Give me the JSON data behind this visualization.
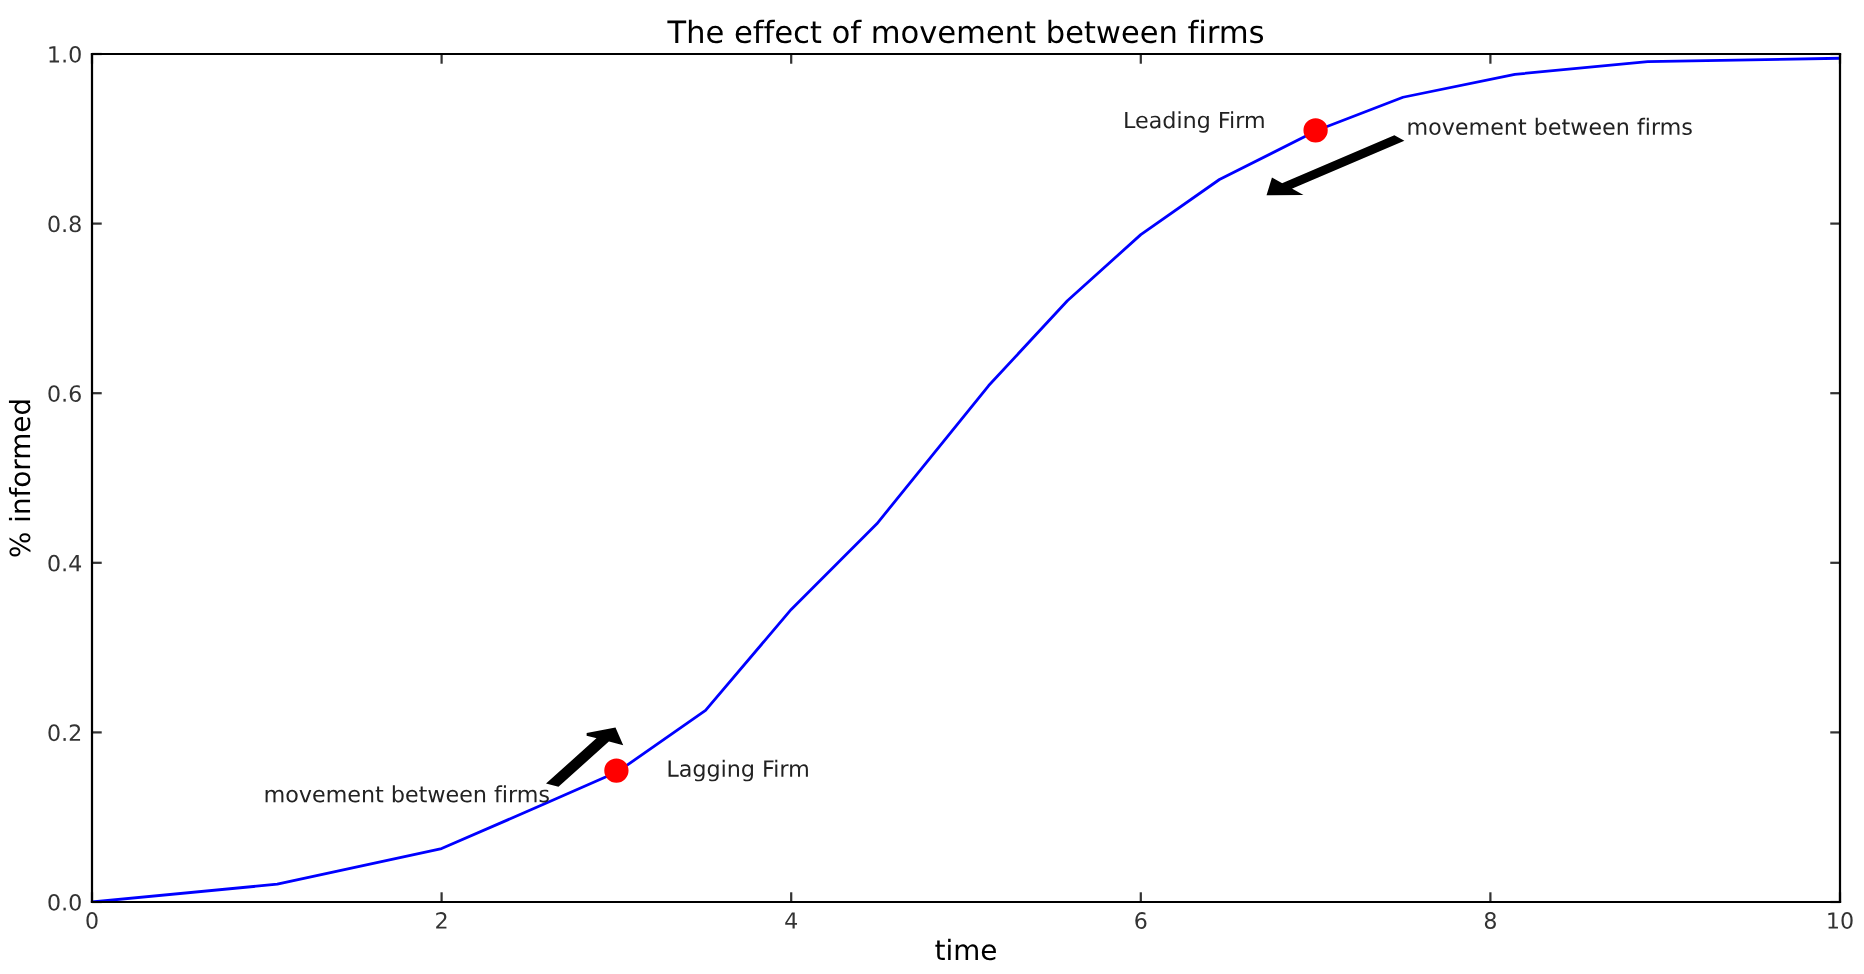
{
  "chart_data": {
    "type": "line",
    "title": "The effect of movement between firms",
    "xlabel": "time",
    "ylabel": "% informed",
    "xlim": [
      0,
      10
    ],
    "ylim": [
      0,
      1
    ],
    "xticks": [
      0,
      2,
      4,
      6,
      8,
      10
    ],
    "yticks": [
      {
        "value": 0,
        "label": "0.0"
      },
      {
        "value": 0.2,
        "label": "0.2"
      },
      {
        "value": 0.4,
        "label": "0.4"
      },
      {
        "value": 0.6,
        "label": "0.6"
      },
      {
        "value": 0.8,
        "label": "0.8"
      },
      {
        "value": 1,
        "label": "1.0"
      }
    ],
    "series": [
      {
        "color": "#0000ff",
        "x": [
          0,
          1.06,
          2.0,
          2.57,
          3.01,
          3.51,
          4.0,
          4.49,
          5.13,
          5.58,
          6.0,
          6.45,
          7.01,
          7.5,
          8.14,
          8.9,
          10
        ],
        "values": [
          0,
          0.021,
          0.063,
          0.114,
          0.154,
          0.226,
          0.345,
          0.446,
          0.609,
          0.709,
          0.787,
          0.852,
          0.91,
          0.949,
          0.976,
          0.991,
          0.995
        ]
      },
      {
        "type": "scatter",
        "color": "#ff0000",
        "x": [
          3,
          7
        ],
        "values": [
          0.155,
          0.91
        ]
      }
    ],
    "annotations": [
      {
        "text": "Lagging Firm",
        "x": 3,
        "y": 0.155
      },
      {
        "text": "Leading Firm",
        "x": 7,
        "y": 0.91
      },
      "movement between firms",
      "movement between firms"
    ]
  }
}
